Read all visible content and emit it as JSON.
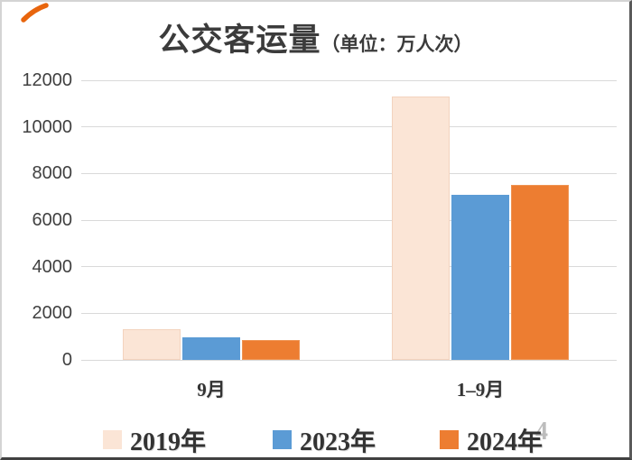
{
  "title": {
    "main": "公交客运量",
    "unit": "（单位：万人次）"
  },
  "chart_data": {
    "type": "bar",
    "title": "公交客运量（单位：万人次）",
    "categories": [
      "9月",
      "1–9月"
    ],
    "series": [
      {
        "name": "2019年",
        "color": "#fbe5d6",
        "edge": "#f3d3be",
        "values": [
          1300,
          11300
        ]
      },
      {
        "name": "2023年",
        "color": "#5b9bd5",
        "edge": "#5b9bd5",
        "values": [
          950,
          7100
        ]
      },
      {
        "name": "2024年",
        "color": "#ed7d31",
        "edge": "#ef9453",
        "values": [
          850,
          7500
        ]
      }
    ],
    "xlabel": "",
    "ylabel": "",
    "ylim": [
      0,
      12000
    ],
    "yticks": [
      12000,
      10000,
      8000,
      6000,
      4000,
      2000,
      0
    ],
    "grid": true,
    "legend_position": "bottom"
  },
  "annotations": {
    "pen_mark": "orange-pen-stroke",
    "ghost_char": "4",
    "pen_color": "#e8650d"
  }
}
